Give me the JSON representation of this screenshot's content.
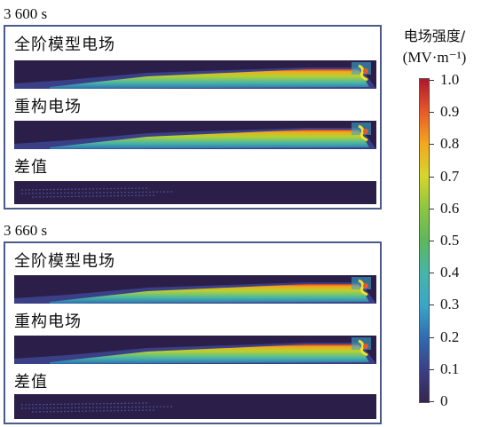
{
  "panels": [
    {
      "time": "3 600 s",
      "rows": [
        {
          "label": "全阶模型电场",
          "kind": "field"
        },
        {
          "label": "重构电场",
          "kind": "field"
        },
        {
          "label": "差值",
          "kind": "diff"
        }
      ]
    },
    {
      "time": "3 660 s",
      "rows": [
        {
          "label": "全阶模型电场",
          "kind": "field"
        },
        {
          "label": "重构电场",
          "kind": "field"
        },
        {
          "label": "差值",
          "kind": "diff"
        }
      ]
    }
  ],
  "colorbar": {
    "title": "电场强度/",
    "unit": "(MV·m⁻¹)",
    "ticks": [
      "1.0",
      "0.9",
      "0.8",
      "0.7",
      "0.6",
      "0.5",
      "0.4",
      "0.3",
      "0.2",
      "0.1",
      "0"
    ],
    "colors": [
      "#35264f",
      "#3b3f86",
      "#2f6cb0",
      "#3aa6c9",
      "#46b5a8",
      "#5cb85c",
      "#8cc63f",
      "#d6d62b",
      "#f2a81d",
      "#e8582a",
      "#b0152a"
    ]
  }
}
